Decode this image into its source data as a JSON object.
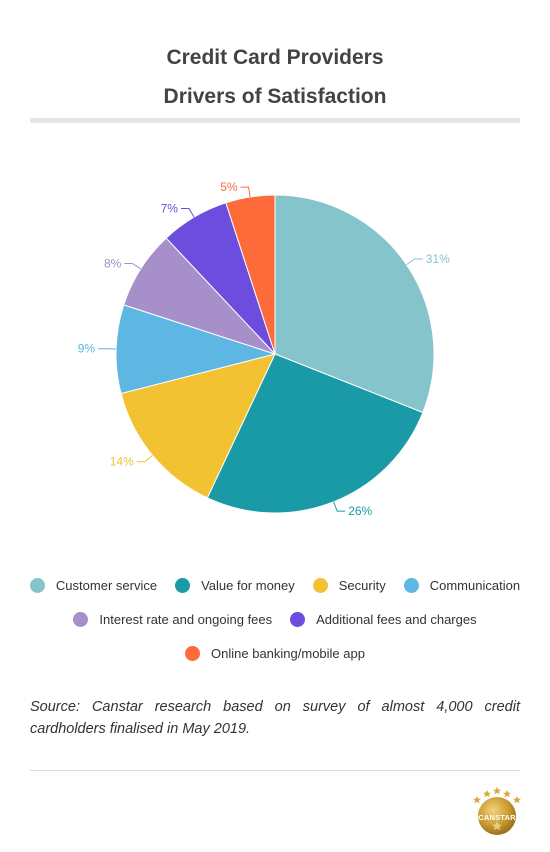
{
  "chart_data": {
    "type": "pie",
    "title": "Credit Card Providers",
    "subtitle": "Drivers of Satisfaction",
    "legend_placement": "bottom",
    "categories": [
      "Customer service",
      "Value for money",
      "Security",
      "Communication",
      "Interest rate and ongoing fees",
      "Additional fees and charges",
      "Online banking/mobile app"
    ],
    "values": [
      31,
      26,
      14,
      9,
      8,
      7,
      5
    ],
    "data_labels": [
      "31%",
      "26%",
      "14%",
      "9%",
      "8%",
      "7%",
      "5%"
    ],
    "colors": [
      "#86c4cb",
      "#1a9aa6",
      "#f2c232",
      "#5eb7e2",
      "#a78fca",
      "#6d4ddd",
      "#fd6b3b"
    ]
  },
  "source_text": "Source: Canstar research based on survey of almost 4,000 credit cardholders finalised in May 2019.",
  "logo": {
    "text": "CANSTAR",
    "icon": "canstar-stars-logo-icon"
  }
}
